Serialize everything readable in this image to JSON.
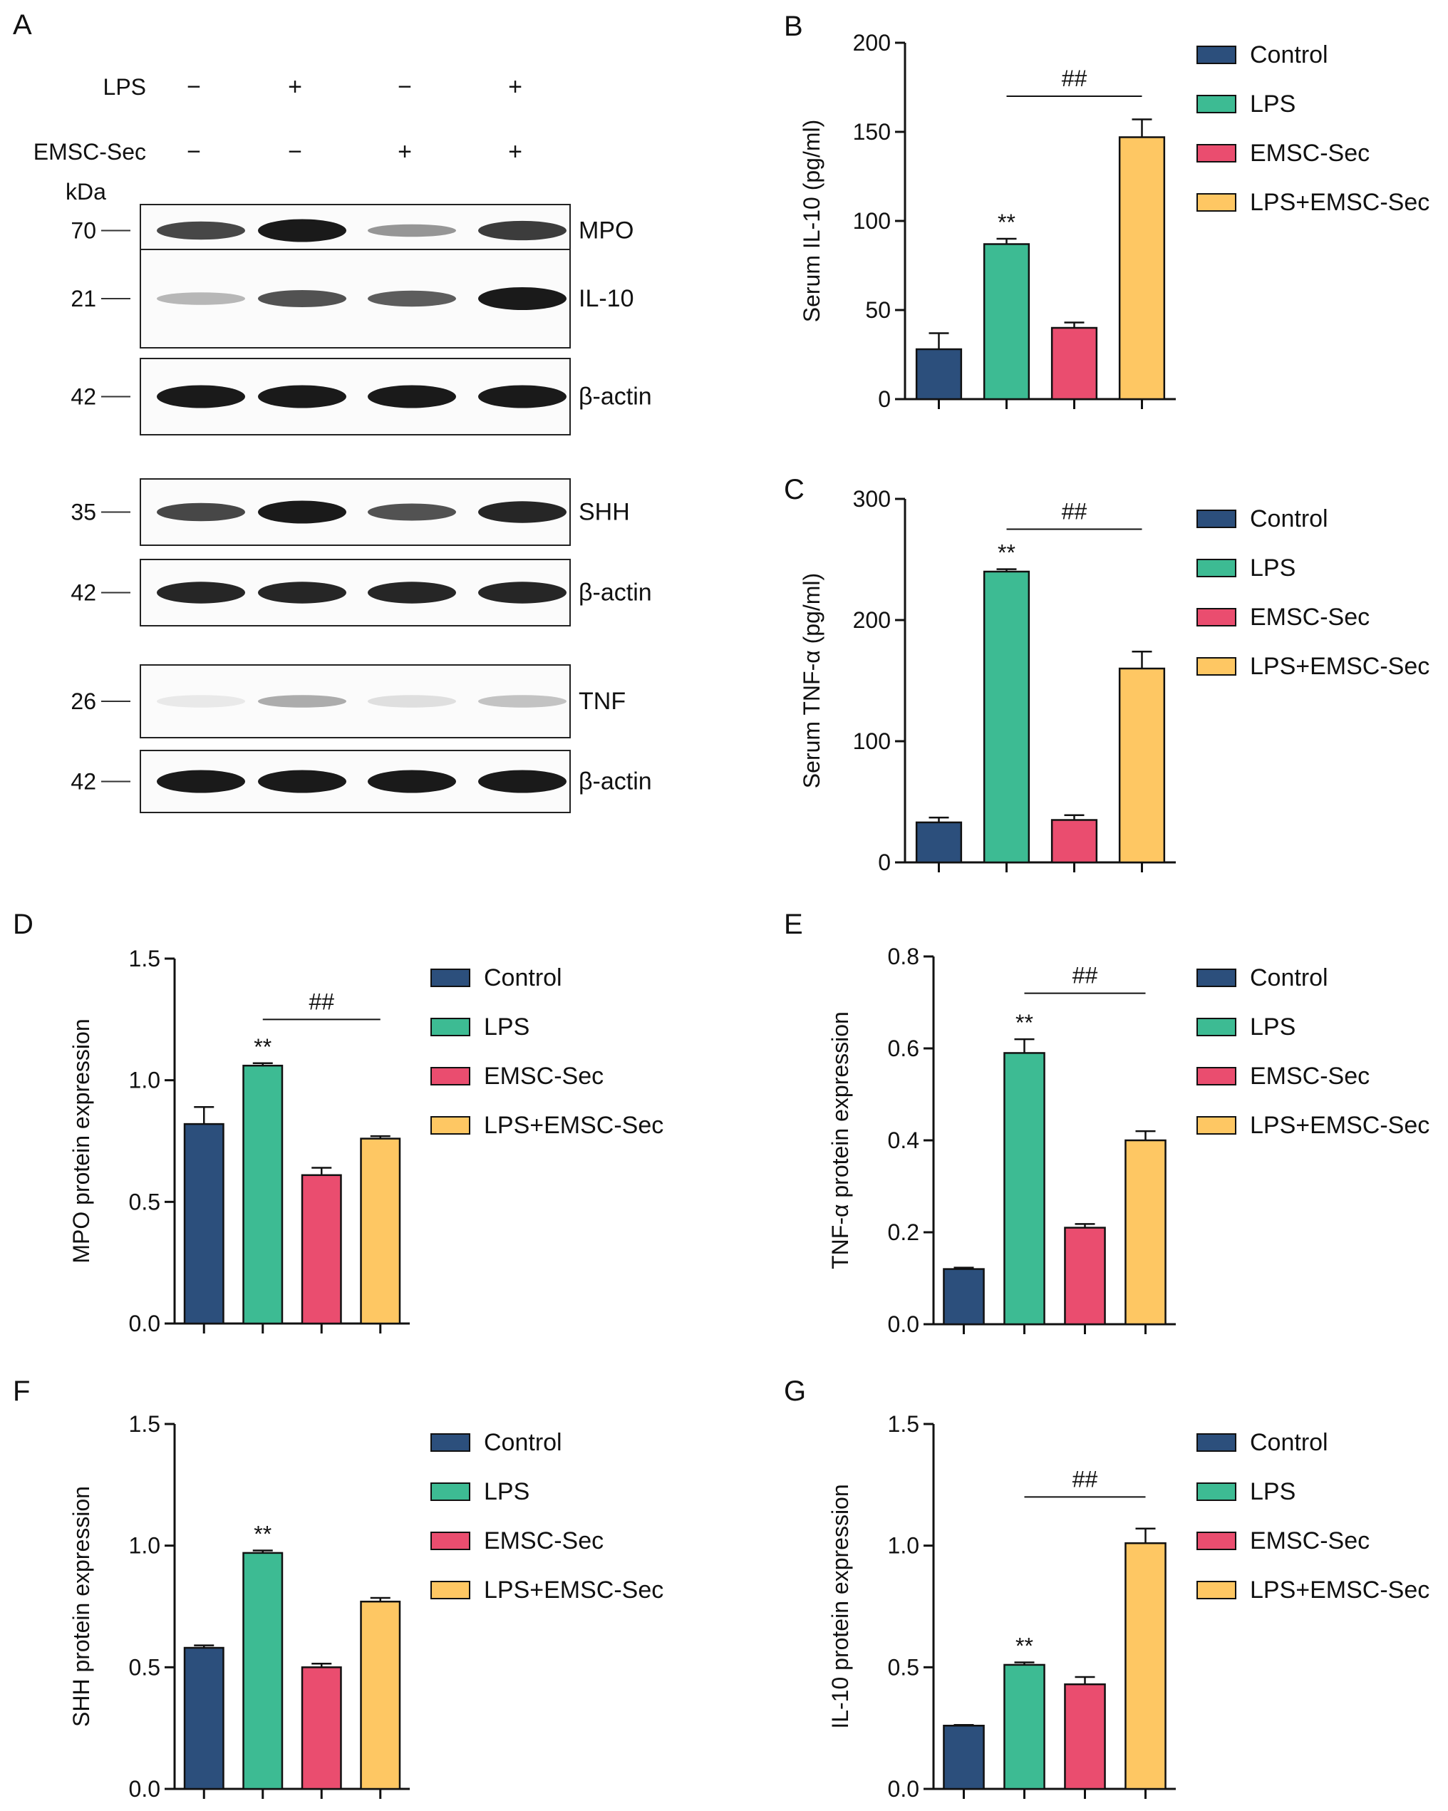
{
  "palette": {
    "Control": "#2c4f7c",
    "LPS": "#3dbb93",
    "EMSC-Sec": "#ea4d6f",
    "LPS+EMSC-Sec": "#fec763",
    "axis": "#111111",
    "blot_band": "#1a1a1a"
  },
  "legend_labels": [
    "Control",
    "LPS",
    "EMSC-Sec",
    "LPS+EMSC-Sec"
  ],
  "blot_panel": {
    "letter": "A",
    "lps_label": "LPS",
    "emsc_label": "EMSC-Sec",
    "lps_signs": [
      "−",
      "+",
      "−",
      "+"
    ],
    "emsc_signs": [
      "−",
      "−",
      "+",
      "+"
    ],
    "kda_label": "kDa",
    "blots": [
      {
        "label": "MPO",
        "kda": "70",
        "intensity": [
          0.8,
          1.0,
          0.45,
          0.85
        ]
      },
      {
        "label": "IL-10",
        "kda": "21",
        "intensity": [
          0.3,
          0.75,
          0.7,
          1.0
        ]
      },
      {
        "label": "β-actin",
        "kda": "42",
        "intensity": [
          1.0,
          1.0,
          1.0,
          1.0
        ]
      },
      {
        "label": "SHH",
        "kda": "35",
        "intensity": [
          0.8,
          1.0,
          0.75,
          0.95
        ]
      },
      {
        "label": "β-actin",
        "kda": "42",
        "intensity": [
          0.95,
          0.95,
          0.95,
          0.95
        ]
      },
      {
        "label": "TNF",
        "kda": "26",
        "intensity": [
          0.08,
          0.35,
          0.12,
          0.25
        ]
      },
      {
        "label": "β-actin",
        "kda": "42",
        "intensity": [
          1.0,
          1.0,
          1.0,
          1.0
        ]
      }
    ]
  },
  "chart_data": [
    {
      "panel": "B",
      "type": "bar",
      "ylabel": "Serum IL-10 (pg/ml)",
      "ylim": [
        0,
        200
      ],
      "ticks": [
        0,
        50,
        100,
        150,
        200
      ],
      "categories": [
        "Control",
        "LPS",
        "EMSC-Sec",
        "LPS+EMSC-Sec"
      ],
      "values": [
        28,
        87,
        40,
        147
      ],
      "errors": [
        9,
        3,
        3,
        10
      ],
      "sig": [
        {
          "bar": 1,
          "text": "**"
        }
      ],
      "bracket": {
        "from": 1,
        "to": 3,
        "text": "##",
        "y": 170
      }
    },
    {
      "panel": "C",
      "type": "bar",
      "ylabel": "Serum TNF-α (pg/ml)",
      "ylim": [
        0,
        300
      ],
      "ticks": [
        0,
        100,
        200,
        300
      ],
      "categories": [
        "Control",
        "LPS",
        "EMSC-Sec",
        "LPS+EMSC-Sec"
      ],
      "values": [
        33,
        240,
        35,
        160
      ],
      "errors": [
        4,
        2,
        4,
        14
      ],
      "sig": [
        {
          "bar": 1,
          "text": "**"
        }
      ],
      "bracket": {
        "from": 1,
        "to": 3,
        "text": "##",
        "y": 275
      }
    },
    {
      "panel": "D",
      "type": "bar",
      "ylabel": "MPO protein expression",
      "ylim": [
        0,
        1.5
      ],
      "ticks": [
        "0.0",
        "0.5",
        "1.0",
        "1.5"
      ],
      "categories": [
        "Control",
        "LPS",
        "EMSC-Sec",
        "LPS+EMSC-Sec"
      ],
      "values": [
        0.82,
        1.06,
        0.61,
        0.76
      ],
      "errors": [
        0.07,
        0.01,
        0.03,
        0.01
      ],
      "sig": [
        {
          "bar": 1,
          "text": "**"
        }
      ],
      "bracket": {
        "from": 1,
        "to": 3,
        "text": "##",
        "y": 1.25
      }
    },
    {
      "panel": "E",
      "type": "bar",
      "ylabel": "TNF-α protein expression",
      "ylim": [
        0,
        0.8
      ],
      "ticks": [
        "0.0",
        "0.2",
        "0.4",
        "0.6",
        "0.8"
      ],
      "categories": [
        "Control",
        "LPS",
        "EMSC-Sec",
        "LPS+EMSC-Sec"
      ],
      "values": [
        0.12,
        0.59,
        0.21,
        0.4
      ],
      "errors": [
        0.003,
        0.03,
        0.008,
        0.02
      ],
      "sig": [
        {
          "bar": 1,
          "text": "**"
        }
      ],
      "bracket": {
        "from": 1,
        "to": 3,
        "text": "##",
        "y": 0.72
      }
    },
    {
      "panel": "F",
      "type": "bar",
      "ylabel": "SHH protein expression",
      "ylim": [
        0,
        1.5
      ],
      "ticks": [
        "0.0",
        "0.5",
        "1.0",
        "1.5"
      ],
      "categories": [
        "Control",
        "LPS",
        "EMSC-Sec",
        "LPS+EMSC-Sec"
      ],
      "values": [
        0.58,
        0.97,
        0.5,
        0.77
      ],
      "errors": [
        0.01,
        0.01,
        0.015,
        0.015
      ],
      "sig": [
        {
          "bar": 1,
          "text": "**"
        }
      ],
      "bracket": null
    },
    {
      "panel": "G",
      "type": "bar",
      "ylabel": "IL-10 protein expression",
      "ylim": [
        0,
        1.5
      ],
      "ticks": [
        "0.0",
        "0.5",
        "1.0",
        "1.5"
      ],
      "categories": [
        "Control",
        "LPS",
        "EMSC-Sec",
        "LPS+EMSC-Sec"
      ],
      "values": [
        0.26,
        0.51,
        0.43,
        1.01
      ],
      "errors": [
        0.003,
        0.01,
        0.03,
        0.06
      ],
      "sig": [
        {
          "bar": 1,
          "text": "**"
        }
      ],
      "bracket": {
        "from": 1,
        "to": 3,
        "text": "##",
        "y": 1.2
      }
    }
  ]
}
